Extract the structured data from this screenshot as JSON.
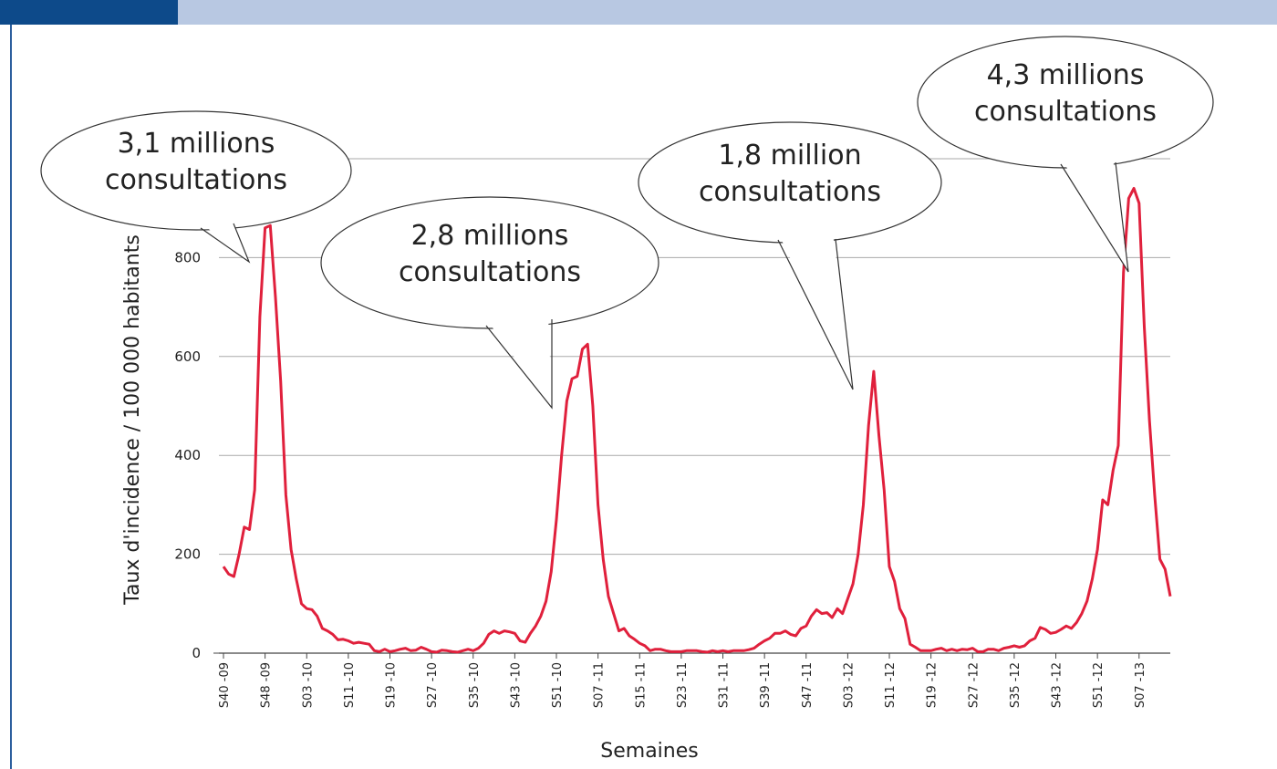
{
  "chart_data": {
    "type": "line",
    "y_label": "Taux  d'incidence   / 100 000  habitants",
    "x_label": "Semaines",
    "color": "#e0203c",
    "ylim": [
      0,
      1000
    ],
    "yticks": [
      0,
      200,
      400,
      600,
      800
    ],
    "grid": true,
    "annotations": [
      {
        "lines": [
          "3,1 millions",
          "consultations"
        ],
        "index": 8
      },
      {
        "lines": [
          "2,8 millions",
          "consultations"
        ],
        "index": 63
      },
      {
        "lines": [
          "1,8 million",
          "consultations"
        ],
        "index": 121
      },
      {
        "lines": [
          "4,3 millions",
          "consultations"
        ],
        "index": 174
      }
    ],
    "categories": [
      "S40 -09",
      null,
      null,
      null,
      null,
      null,
      null,
      null,
      "S48 -09",
      null,
      null,
      null,
      null,
      null,
      null,
      null,
      "S03 -10",
      null,
      null,
      null,
      null,
      null,
      null,
      null,
      "S11 -10",
      null,
      null,
      null,
      null,
      null,
      null,
      null,
      "S19 -10",
      null,
      null,
      null,
      null,
      null,
      null,
      null,
      "S27 -10",
      null,
      null,
      null,
      null,
      null,
      null,
      null,
      "S35 -10",
      null,
      null,
      null,
      null,
      null,
      null,
      null,
      "S43 -10",
      null,
      null,
      null,
      null,
      null,
      null,
      null,
      "S51 -10",
      null,
      null,
      null,
      null,
      null,
      null,
      null,
      "S07 -11",
      null,
      null,
      null,
      null,
      null,
      null,
      null,
      "S15 -11",
      null,
      null,
      null,
      null,
      null,
      null,
      null,
      "S23 -11",
      null,
      null,
      null,
      null,
      null,
      null,
      null,
      "S31 -11",
      null,
      null,
      null,
      null,
      null,
      null,
      null,
      "S39 -11",
      null,
      null,
      null,
      null,
      null,
      null,
      null,
      "S47 -11",
      null,
      null,
      null,
      null,
      null,
      null,
      null,
      "S03 -12",
      null,
      null,
      null,
      null,
      null,
      null,
      null,
      "S11 -12",
      null,
      null,
      null,
      null,
      null,
      null,
      null,
      "S19 -12",
      null,
      null,
      null,
      null,
      null,
      null,
      null,
      "S27 -12",
      null,
      null,
      null,
      null,
      null,
      null,
      null,
      "S35 -12",
      null,
      null,
      null,
      null,
      null,
      null,
      null,
      "S43 -12",
      null,
      null,
      null,
      null,
      null,
      null,
      null,
      "S51 -12",
      null,
      null,
      null,
      null,
      null,
      null,
      null,
      "S07 -13",
      null,
      null,
      null,
      null,
      null,
      null
    ],
    "values": [
      175,
      160,
      155,
      200,
      255,
      250,
      330,
      680,
      860,
      865,
      720,
      550,
      320,
      210,
      150,
      100,
      90,
      88,
      75,
      50,
      45,
      38,
      27,
      28,
      25,
      20,
      22,
      20,
      18,
      5,
      3,
      8,
      3,
      5,
      8,
      10,
      5,
      6,
      12,
      8,
      3,
      2,
      6,
      5,
      3,
      2,
      5,
      8,
      5,
      10,
      20,
      38,
      45,
      40,
      45,
      43,
      40,
      25,
      22,
      40,
      55,
      75,
      105,
      165,
      270,
      400,
      510,
      555,
      560,
      615,
      625,
      500,
      300,
      190,
      115,
      80,
      45,
      50,
      35,
      28,
      20,
      15,
      5,
      8,
      8,
      5,
      3,
      3,
      3,
      5,
      5,
      5,
      3,
      2,
      5,
      3,
      5,
      3,
      5,
      5,
      5,
      7,
      10,
      18,
      25,
      30,
      40,
      40,
      45,
      38,
      35,
      50,
      55,
      75,
      88,
      80,
      82,
      72,
      90,
      80,
      110,
      140,
      200,
      300,
      460,
      570,
      440,
      330,
      175,
      145,
      90,
      70,
      18,
      12,
      5,
      5,
      5,
      8,
      10,
      5,
      8,
      5,
      8,
      7,
      10,
      3,
      3,
      8,
      8,
      5,
      10,
      12,
      15,
      12,
      15,
      25,
      30,
      52,
      48,
      40,
      42,
      48,
      55,
      50,
      62,
      80,
      105,
      150,
      210,
      310,
      300,
      370,
      420,
      770,
      920,
      940,
      910,
      660,
      470,
      320,
      190,
      170,
      115
    ]
  }
}
